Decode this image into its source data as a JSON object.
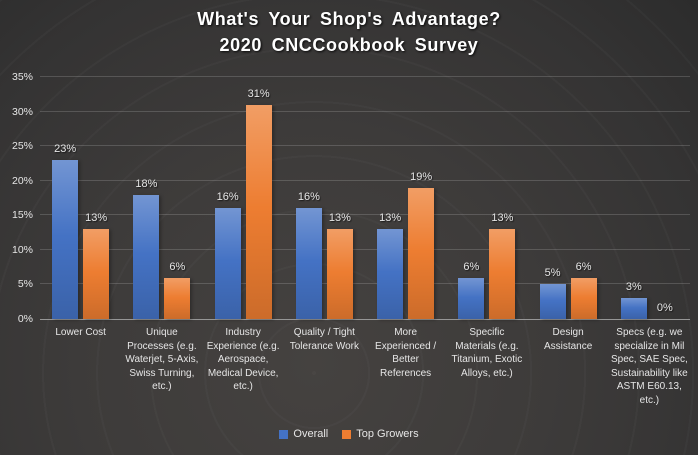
{
  "title": {
    "line1": "What's Your Shop's Advantage?",
    "line2": "2020 CNCCookbook Survey"
  },
  "chart_data": {
    "type": "bar",
    "title": "What's Your Shop's Advantage? 2020 CNCCookbook Survey",
    "categories": [
      "Lower Cost",
      "Unique Processes (e.g. Waterjet, 5-Axis, Swiss Turning, etc.)",
      "Industry Experience (e.g. Aerospace, Medical Device, etc.)",
      "Quality / Tight Tolerance Work",
      "More Experienced / Better References",
      "Specific Materials (e.g. Titanium, Exotic Alloys, etc.)",
      "Design Assistance",
      "Specs (e.g. we specialize in Mil Spec, SAE Spec, Sustainability like ASTM E60.13, etc.)"
    ],
    "series": [
      {
        "name": "Overall",
        "color": "#4472C4",
        "values": [
          23,
          18,
          16,
          16,
          13,
          6,
          5,
          3
        ]
      },
      {
        "name": "Top Growers",
        "color": "#ED7D31",
        "values": [
          13,
          6,
          31,
          13,
          19,
          13,
          6,
          0
        ]
      }
    ],
    "ylim": [
      0,
      35
    ],
    "y_tick_step": 5,
    "y_tick_labels": [
      "0%",
      "5%",
      "10%",
      "15%",
      "20%",
      "25%",
      "30%",
      "35%"
    ],
    "data_label_suffix": "%",
    "grid": true,
    "legend_position": "bottom"
  },
  "colors": {
    "gridline": "rgba(255,255,255,0.16)",
    "axis_line": "#969696",
    "text": "#e6e6e6",
    "title_text": "#ffffff",
    "background_base": "#3d3b3a"
  }
}
